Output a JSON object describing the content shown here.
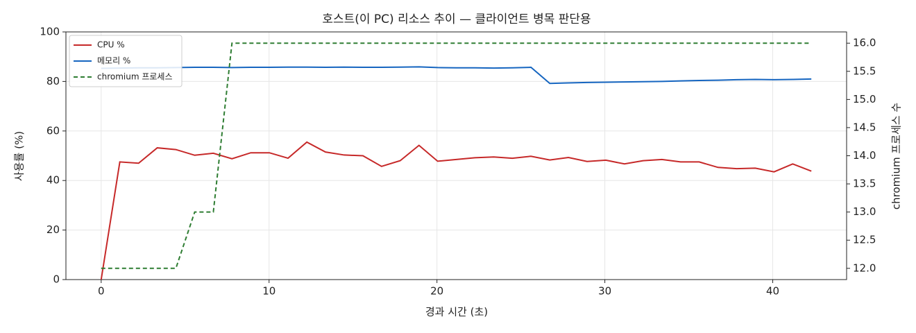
{
  "chart_data": {
    "type": "line",
    "title": "호스트(이 PC) 리소스 추이 — 클라이언트 병목 판단용",
    "x_label": "경과 시간 (초)",
    "y_label": "사용률 (%)",
    "y2_label": "chromium 프로세스 수",
    "x": [
      0,
      1.11,
      2.23,
      3.34,
      4.45,
      5.57,
      6.68,
      7.79,
      8.91,
      10.02,
      11.13,
      12.25,
      13.36,
      14.47,
      15.59,
      16.7,
      17.81,
      18.93,
      20.04,
      21.15,
      22.26,
      23.38,
      24.49,
      25.6,
      26.72,
      27.83,
      28.94,
      30.06,
      31.17,
      32.28,
      33.4,
      34.51,
      35.62,
      36.74,
      37.85,
      38.96,
      40.08,
      41.19,
      42.3
    ],
    "series": [
      {
        "name": "CPU %",
        "color": "#c62828",
        "dash": false,
        "values": [
          0,
          47.5,
          47,
          53.2,
          52.5,
          50.2,
          51,
          48.8,
          51.2,
          51.2,
          49,
          55.5,
          51.5,
          50.3,
          50,
          45.7,
          48,
          54.2,
          47.8,
          48.5,
          49.2,
          49.5,
          49,
          49.8,
          48.3,
          49.3,
          47.7,
          48.2,
          46.7,
          48,
          48.5,
          47.5,
          47.5,
          45.3,
          44.8,
          45,
          43.5,
          46.7,
          43.8
        ]
      },
      {
        "name": "메모리 %",
        "color": "#1565c0",
        "dash": false,
        "values": [
          85.3,
          85.4,
          85.5,
          85.5,
          85.6,
          85.7,
          85.7,
          85.6,
          85.7,
          85.7,
          85.8,
          85.8,
          85.7,
          85.8,
          85.7,
          85.7,
          85.8,
          85.9,
          85.6,
          85.5,
          85.5,
          85.4,
          85.5,
          85.7,
          79.2,
          79.4,
          79.6,
          79.7,
          79.8,
          79.9,
          80.0,
          80.2,
          80.4,
          80.5,
          80.7,
          80.8,
          80.7,
          80.8,
          81.0
        ]
      },
      {
        "name": "chromium 프로세스",
        "color": "#2e7d32",
        "dash": true,
        "axis": "y2",
        "values": [
          12,
          12,
          12,
          12,
          12,
          13,
          13,
          16,
          16,
          16,
          16,
          16,
          16,
          16,
          16,
          16,
          16,
          16,
          16,
          16,
          16,
          16,
          16,
          16,
          16,
          16,
          16,
          16,
          16,
          16,
          16,
          16,
          16,
          16,
          16,
          16,
          16,
          16,
          16
        ]
      }
    ],
    "xlim": [
      -2.1,
      44.4
    ],
    "xticks": [
      0,
      10,
      20,
      30,
      40
    ],
    "ylim": [
      0,
      100
    ],
    "yticks": [
      0,
      20,
      40,
      60,
      80,
      100
    ],
    "y2lim": [
      11.8,
      16.2
    ],
    "y2ticks": [
      {
        "value": 12,
        "label": "12.0"
      },
      12.5,
      {
        "value": 13,
        "label": "13.0"
      },
      13.5,
      {
        "value": 14,
        "label": "14.0"
      },
      14.5,
      {
        "value": 15,
        "label": "15.0"
      },
      15.5,
      {
        "value": 16,
        "label": "16.0"
      }
    ],
    "grid": true,
    "legend": "upper-left"
  }
}
